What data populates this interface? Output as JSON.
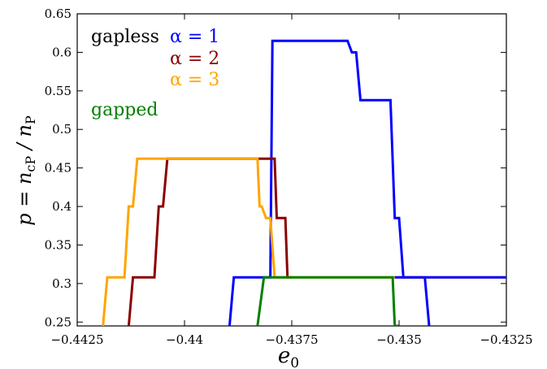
{
  "chart_data": {
    "type": "line",
    "xlabel": "e_0",
    "ylabel": "p = n_cP / n_P",
    "xlim": [
      -0.4425,
      -0.4325
    ],
    "ylim": [
      0.245,
      0.65
    ],
    "x_ticks": [
      -0.4425,
      -0.44,
      -0.4375,
      -0.435,
      -0.4325
    ],
    "x_tick_labels": [
      "−0.4425",
      "−0.44",
      "−0.4375",
      "−0.435",
      "−0.4325"
    ],
    "y_ticks": [
      0.25,
      0.3,
      0.35,
      0.4,
      0.45,
      0.5,
      0.55,
      0.6,
      0.65
    ],
    "y_tick_labels": [
      "0.25",
      "0.3",
      "0.35",
      "0.4",
      "0.45",
      "0.5",
      "0.55",
      "0.6",
      "0.65"
    ],
    "grid": false,
    "legend": {
      "title": "gapless",
      "gapped_label": "gapped",
      "entries": [
        {
          "label": "α = 1",
          "color": "#0000ff"
        },
        {
          "label": "α = 2",
          "color": "#8b0000"
        },
        {
          "label": "α = 3",
          "color": "#ffa500"
        }
      ],
      "placement": "top-left"
    },
    "series": [
      {
        "label_ref": 0,
        "color": "#0000ff",
        "x": [
          -0.43895,
          -0.43885,
          -0.438,
          -0.43795,
          -0.4362,
          -0.4361,
          -0.436,
          -0.4359,
          -0.4352,
          -0.4351,
          -0.435,
          -0.4349,
          -0.4344,
          -0.4343
        ],
        "y": [
          0.245,
          0.308,
          0.308,
          0.615,
          0.615,
          0.6,
          0.6,
          0.538,
          0.538,
          0.385,
          0.385,
          0.308,
          0.308,
          0.245
        ]
      },
      {
        "label_ref": 1,
        "color": "#8b0000",
        "x": [
          -0.4413,
          -0.4412,
          -0.4407,
          -0.4406,
          -0.4405,
          -0.4404,
          -0.43795,
          -0.4379,
          -0.43785,
          -0.4378,
          -0.43765,
          -0.4376,
          -0.4375
        ],
        "y": [
          0.245,
          0.308,
          0.308,
          0.4,
          0.4,
          0.462,
          0.462,
          0.462,
          0.385,
          0.385,
          0.385,
          0.308,
          0.308
        ]
      },
      {
        "label_ref": 2,
        "color": "#ffa500",
        "x": [
          -0.4419,
          -0.4418,
          -0.4414,
          -0.4413,
          -0.4412,
          -0.4411,
          -0.4383,
          -0.43825,
          -0.4382,
          -0.4381,
          -0.43805,
          -0.438,
          -0.4379,
          -0.4351,
          -0.4325
        ],
        "y": [
          0.245,
          0.308,
          0.308,
          0.4,
          0.4,
          0.462,
          0.462,
          0.4,
          0.4,
          0.385,
          0.385,
          0.385,
          0.308,
          0.308,
          0.308
        ]
      },
      {
        "label_ref": "gapped",
        "color": "#008000",
        "x": [
          -0.4383,
          -0.43815,
          -0.438,
          -0.43795,
          -0.4352,
          -0.43515,
          -0.4351,
          -0.435
        ],
        "y": [
          0.245,
          0.308,
          0.308,
          0.308,
          0.308,
          0.308,
          0.245,
          0.245
        ]
      },
      {
        "label_ref": "gapped-extension",
        "color": "#0000ff",
        "x": [
          -0.4351,
          -0.4325
        ],
        "y": [
          0.308,
          0.308
        ]
      }
    ]
  }
}
